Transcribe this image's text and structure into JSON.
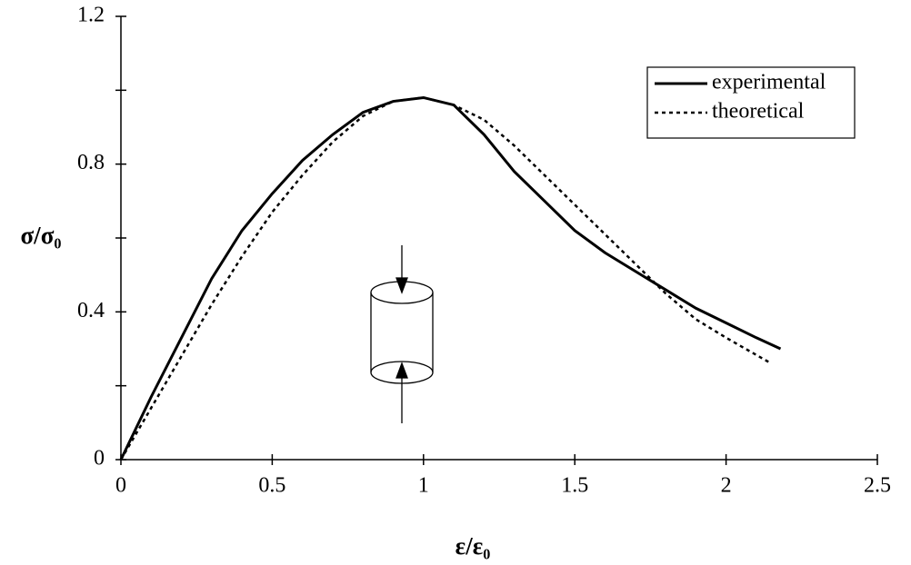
{
  "chart_data": {
    "type": "line",
    "xlabel": "ε/ε₀",
    "ylabel": "σ/σ₀",
    "xlim": [
      0,
      2.5
    ],
    "xticks": [
      0,
      0.5,
      1,
      1.5,
      2,
      2.5
    ],
    "ylim": [
      0,
      1.2
    ],
    "yticks": [
      0,
      0.4,
      0.8,
      1.2
    ],
    "yminorticks": [
      0.2,
      0.6,
      1.0
    ],
    "grid": false,
    "legend": "upper right",
    "series": [
      {
        "name": "experimental",
        "color": "#000000",
        "style": "solid",
        "x": [
          0,
          0.1,
          0.2,
          0.3,
          0.4,
          0.5,
          0.6,
          0.7,
          0.8,
          0.9,
          1.0,
          1.1,
          1.2,
          1.3,
          1.4,
          1.5,
          1.6,
          1.7,
          1.8,
          1.9,
          2.0,
          2.1,
          2.18
        ],
        "values": [
          0,
          0.17,
          0.33,
          0.49,
          0.62,
          0.72,
          0.81,
          0.88,
          0.94,
          0.97,
          0.98,
          0.96,
          0.88,
          0.78,
          0.7,
          0.62,
          0.56,
          0.51,
          0.46,
          0.41,
          0.37,
          0.33,
          0.3
        ]
      },
      {
        "name": "theoretical",
        "color": "#000000",
        "style": "dotted",
        "x": [
          0,
          0.1,
          0.2,
          0.3,
          0.4,
          0.5,
          0.6,
          0.7,
          0.8,
          0.9,
          1.0,
          1.1,
          1.2,
          1.3,
          1.4,
          1.5,
          1.6,
          1.7,
          1.8,
          1.9,
          2.0,
          2.15
        ],
        "values": [
          0,
          0.14,
          0.28,
          0.42,
          0.55,
          0.67,
          0.77,
          0.86,
          0.93,
          0.97,
          0.98,
          0.96,
          0.92,
          0.85,
          0.77,
          0.69,
          0.61,
          0.53,
          0.45,
          0.38,
          0.33,
          0.26
        ]
      }
    ]
  }
}
